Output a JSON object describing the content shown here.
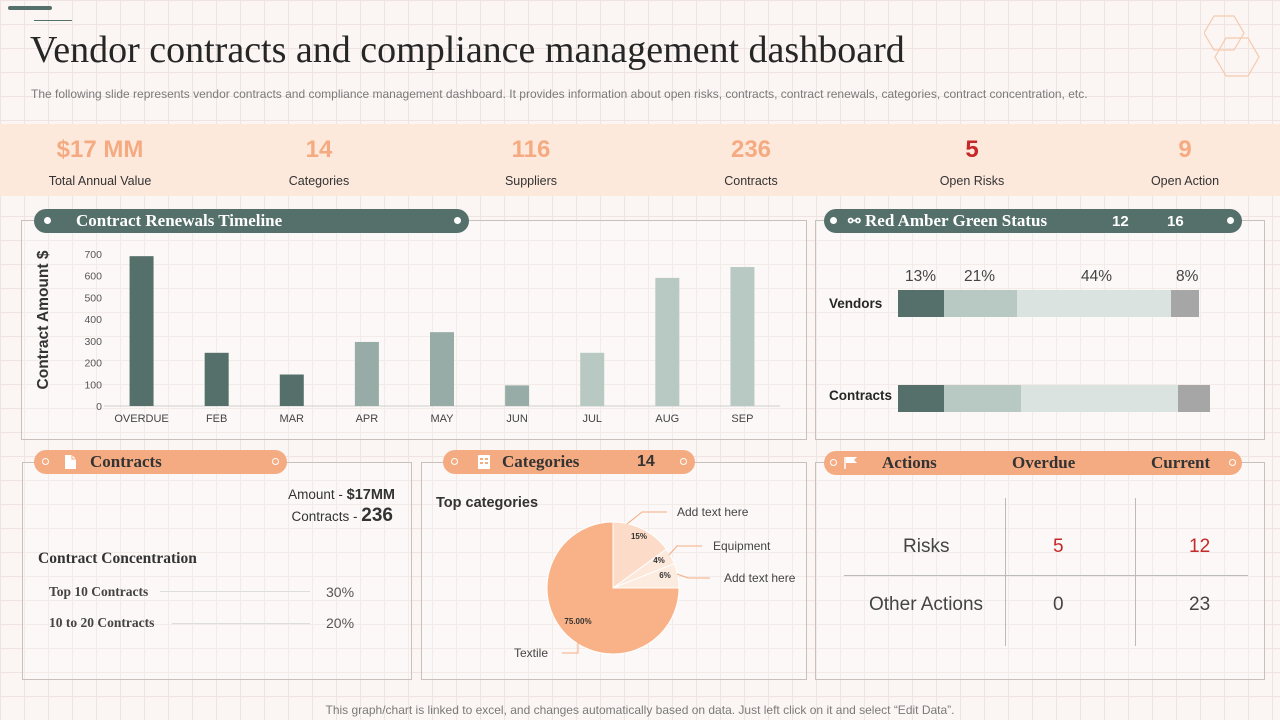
{
  "header": {
    "title": "Vendor contracts and compliance management dashboard",
    "subtitle": "The following slide represents vendor contracts and compliance management dashboard. It provides information about open risks, contracts, contract renewals, categories, contract concentration, etc."
  },
  "kpis": [
    {
      "value": "$17 MM",
      "label": "Total Annual Value"
    },
    {
      "value": "14",
      "label": "Categories"
    },
    {
      "value": "116",
      "label": "Suppliers"
    },
    {
      "value": "236",
      "label": "Contracts"
    },
    {
      "value": "5",
      "label": "Open Risks"
    },
    {
      "value": "9",
      "label": "Open Action"
    }
  ],
  "renewals": {
    "title": "Contract Renewals Timeline",
    "chart_data": {
      "type": "bar",
      "ylabel": "Contract Amount $",
      "ylim": [
        0,
        700
      ],
      "yticks": [
        "0",
        "100",
        "200",
        "300",
        "400",
        "500",
        "600",
        "700"
      ],
      "categories": [
        "OVERDUE",
        "FEB",
        "MAR",
        "APR",
        "MAY",
        "JUN",
        "JUL",
        "AUG",
        "SEP"
      ],
      "values": [
        690,
        245,
        145,
        295,
        340,
        95,
        245,
        590,
        640
      ],
      "colors": [
        "#55706a",
        "#55706a",
        "#55706a",
        "#97aca6",
        "#97aca6",
        "#97aca6",
        "#b8c8c3",
        "#b8c8c3",
        "#b8c8c3"
      ]
    }
  },
  "rag": {
    "title": "Red Amber Green Status",
    "num1": "12",
    "num2": "16",
    "percents": [
      "13%",
      "21%",
      "44%",
      "8%"
    ],
    "rows": [
      "Vendors",
      "Contracts"
    ],
    "colors": [
      "#55706a",
      "#b8c8c3",
      "#dbe3e0",
      "#a6a6a6"
    ],
    "chart_data": {
      "type": "bar",
      "stacked": true,
      "categories": [
        "Vendors",
        "Contracts"
      ],
      "series": [
        {
          "values": [
            13,
            13
          ]
        },
        {
          "values": [
            21,
            22
          ]
        },
        {
          "values": [
            44,
            45
          ]
        },
        {
          "values": [
            8,
            9
          ]
        }
      ]
    }
  },
  "contracts": {
    "title": "Contracts",
    "amount_label": "Amount - ",
    "amount_value": "$17MM",
    "contracts_label": "Contracts - ",
    "contracts_value": "236",
    "concentration_title": "Contract Concentration",
    "rows": [
      {
        "label": "Top 10 Contracts",
        "value": "30%"
      },
      {
        "label": "10 to 20 Contracts",
        "value": "20%"
      }
    ]
  },
  "categories": {
    "title": "Categories",
    "count": "14",
    "top_title": "Top categories",
    "chart_data": {
      "type": "pie",
      "slices": [
        {
          "name": "Textile",
          "value": 75.0,
          "label": "75.00%",
          "color": "#f9b287"
        },
        {
          "name": "Add text here",
          "value": 15,
          "label": "15%",
          "color": "#fcdcc8"
        },
        {
          "name": "Equipment",
          "value": 4,
          "label": "4%",
          "color": "#fde8dc"
        },
        {
          "name": "Add text here",
          "value": 6,
          "label": "6%",
          "color": "#fcebdf"
        }
      ]
    }
  },
  "actions": {
    "header_actions": "Actions",
    "header_overdue": "Overdue",
    "header_current": "Current",
    "rows": [
      {
        "label": "Risks",
        "overdue": "5",
        "current": "12"
      },
      {
        "label": "Other Actions",
        "overdue": "0",
        "current": "23"
      }
    ],
    "red": "#c62828"
  },
  "footer": "This graph/chart is linked to excel,  and changes automatically based on data. Just left click on it and select “Edit Data”."
}
